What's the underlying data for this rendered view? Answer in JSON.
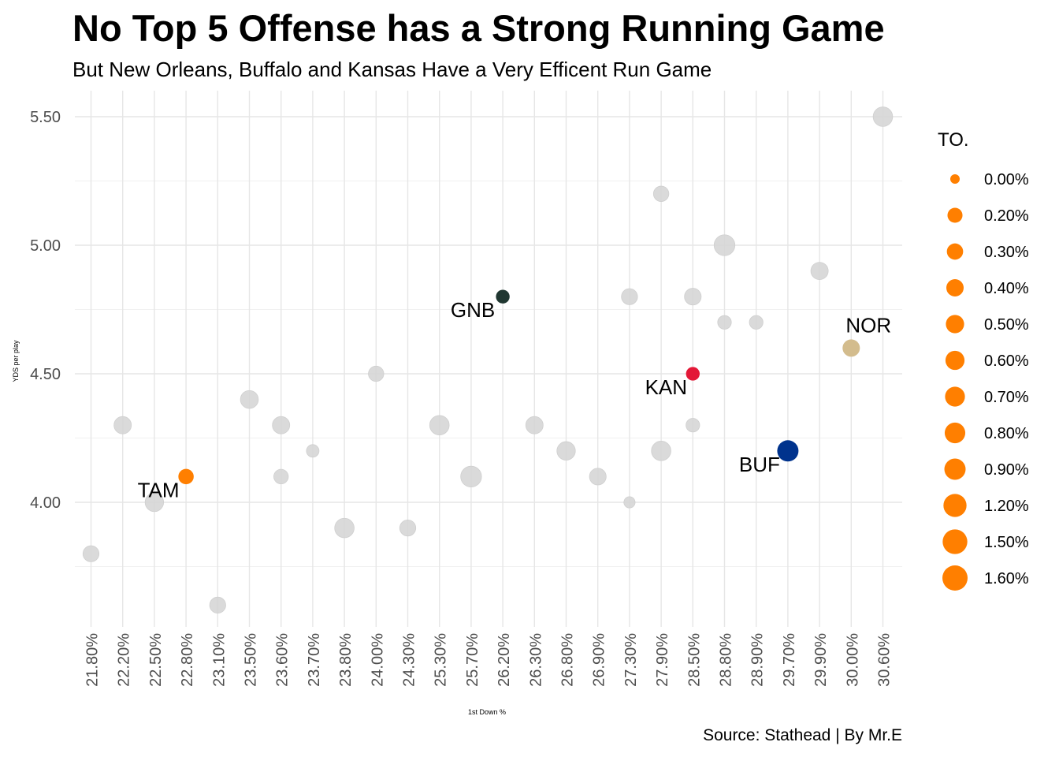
{
  "chart_data": {
    "type": "scatter",
    "title": "No Top 5 Offense has a Strong Running Game",
    "subtitle": "But New Orleans, Buffalo and Kansas Have a Very Efficent Run Game",
    "caption": "Source: Stathead | By Mr.E",
    "xlabel": "1st Down %",
    "ylabel": "YDS per play",
    "x_categories": [
      "21.80%",
      "22.20%",
      "22.50%",
      "22.80%",
      "23.10%",
      "23.50%",
      "23.60%",
      "23.70%",
      "23.80%",
      "24.00%",
      "24.30%",
      "25.30%",
      "25.70%",
      "26.20%",
      "26.30%",
      "26.80%",
      "26.90%",
      "27.30%",
      "27.90%",
      "28.50%",
      "28.80%",
      "28.90%",
      "29.70%",
      "29.90%",
      "30.00%",
      "30.60%"
    ],
    "yticks": [
      "4.00",
      "4.50",
      "5.00",
      "5.50"
    ],
    "ylim": [
      3.45,
      5.6
    ],
    "grid": true,
    "legend": {
      "title": "TO.",
      "position": "right",
      "entries": [
        "0.00%",
        "0.20%",
        "0.30%",
        "0.40%",
        "0.50%",
        "0.60%",
        "0.70%",
        "0.80%",
        "0.90%",
        "1.20%",
        "1.50%",
        "1.60%"
      ],
      "color": "#FF7F00"
    },
    "points": [
      {
        "x": "21.80%",
        "y": 3.8,
        "size": 0.6,
        "color": "#d3d3d3"
      },
      {
        "x": "22.20%",
        "y": 4.3,
        "size": 0.8,
        "color": "#d3d3d3"
      },
      {
        "x": "22.50%",
        "y": 4.0,
        "size": 1.0,
        "color": "#d3d3d3"
      },
      {
        "x": "22.80%",
        "y": 4.1,
        "size": 0.5,
        "color": "#FF7F00",
        "team": "TAM"
      },
      {
        "x": "23.10%",
        "y": 3.6,
        "size": 0.6,
        "color": "#d3d3d3"
      },
      {
        "x": "23.50%",
        "y": 4.4,
        "size": 0.9,
        "color": "#d3d3d3"
      },
      {
        "x": "23.60%",
        "y": 4.3,
        "size": 0.8,
        "color": "#d3d3d3"
      },
      {
        "x": "23.60%",
        "y": 4.1,
        "size": 0.4,
        "color": "#d3d3d3"
      },
      {
        "x": "23.70%",
        "y": 4.2,
        "size": 0.2,
        "color": "#d3d3d3"
      },
      {
        "x": "23.80%",
        "y": 3.9,
        "size": 1.2,
        "color": "#d3d3d3"
      },
      {
        "x": "24.00%",
        "y": 4.5,
        "size": 0.5,
        "color": "#d3d3d3"
      },
      {
        "x": "24.30%",
        "y": 3.9,
        "size": 0.6,
        "color": "#d3d3d3"
      },
      {
        "x": "25.30%",
        "y": 4.3,
        "size": 1.2,
        "color": "#d3d3d3"
      },
      {
        "x": "25.70%",
        "y": 4.1,
        "size": 1.5,
        "color": "#d3d3d3"
      },
      {
        "x": "26.20%",
        "y": 4.8,
        "size": 0.3,
        "color": "#203731",
        "team": "GNB"
      },
      {
        "x": "26.30%",
        "y": 4.3,
        "size": 0.8,
        "color": "#d3d3d3"
      },
      {
        "x": "26.80%",
        "y": 4.2,
        "size": 1.0,
        "color": "#d3d3d3"
      },
      {
        "x": "26.90%",
        "y": 4.1,
        "size": 0.7,
        "color": "#d3d3d3"
      },
      {
        "x": "27.30%",
        "y": 4.8,
        "size": 0.6,
        "color": "#d3d3d3"
      },
      {
        "x": "27.30%",
        "y": 4.0,
        "size": 0.1,
        "color": "#d3d3d3"
      },
      {
        "x": "27.90%",
        "y": 5.2,
        "size": 0.5,
        "color": "#d3d3d3"
      },
      {
        "x": "27.90%",
        "y": 4.2,
        "size": 1.2,
        "color": "#d3d3d3"
      },
      {
        "x": "28.50%",
        "y": 4.8,
        "size": 0.7,
        "color": "#d3d3d3"
      },
      {
        "x": "28.50%",
        "y": 4.5,
        "size": 0.3,
        "color": "#E31837",
        "team": "KAN"
      },
      {
        "x": "28.50%",
        "y": 4.3,
        "size": 0.3,
        "color": "#d3d3d3"
      },
      {
        "x": "28.80%",
        "y": 5.0,
        "size": 1.5,
        "color": "#d3d3d3"
      },
      {
        "x": "28.80%",
        "y": 4.7,
        "size": 0.3,
        "color": "#d3d3d3"
      },
      {
        "x": "28.90%",
        "y": 4.7,
        "size": 0.3,
        "color": "#d3d3d3"
      },
      {
        "x": "29.70%",
        "y": 4.2,
        "size": 1.6,
        "color": "#00338D",
        "team": "BUF"
      },
      {
        "x": "29.90%",
        "y": 4.9,
        "size": 0.8,
        "color": "#d3d3d3"
      },
      {
        "x": "30.00%",
        "y": 4.6,
        "size": 0.8,
        "color": "#D3BC8D",
        "team": "NOR"
      },
      {
        "x": "30.60%",
        "y": 5.5,
        "size": 1.2,
        "color": "#d3d3d3"
      }
    ]
  }
}
